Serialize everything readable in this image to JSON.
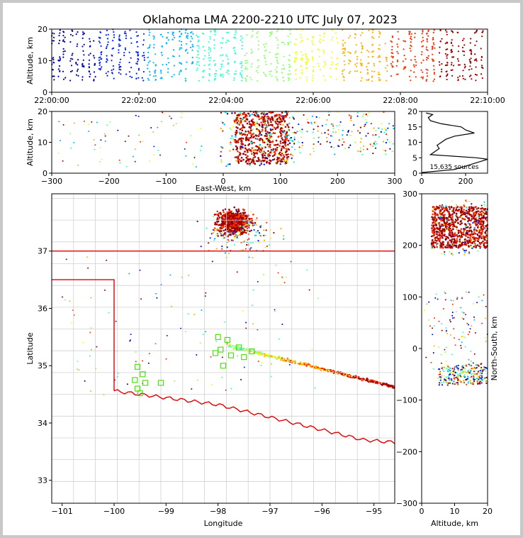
{
  "chart_data": {
    "type": "scatter",
    "title": "Oklahoma LMA 2200-2210 UTC July 07, 2023",
    "source_count_label": "15,635 sources",
    "colormap": [
      "#0000a8",
      "#0020ff",
      "#00b4ff",
      "#30ffd0",
      "#90ff70",
      "#f0ff20",
      "#ffb000",
      "#ff3000",
      "#a00000"
    ],
    "panels": {
      "time_height": {
        "xlabel": "",
        "ylabel": "Altitude, km",
        "xlim_minutes": [
          0,
          10
        ],
        "ylim": [
          0,
          20
        ],
        "x_ticks": [
          "22:00:00",
          "22:02:00",
          "22:04:00",
          "22:06:00",
          "22:08:00",
          "22:10:00"
        ],
        "y_ticks": [
          0,
          10,
          20
        ]
      },
      "ew_height": {
        "xlabel": "East-West, km",
        "ylabel": "Altitude, km",
        "xlim": [
          -300,
          300
        ],
        "ylim": [
          0,
          20
        ],
        "x_ticks": [
          -300,
          -200,
          -100,
          0,
          100,
          200,
          300
        ],
        "y_ticks": [
          0,
          10,
          20
        ]
      },
      "histogram": {
        "xlim": [
          0,
          300
        ],
        "ylim": [
          0,
          20
        ],
        "x_ticks": [
          0,
          200
        ],
        "y_ticks": [
          0,
          5,
          10,
          15,
          20
        ],
        "profile": [
          [
            0,
            0.2
          ],
          [
            150,
            1.2
          ],
          [
            300,
            4.5
          ],
          [
            250,
            5
          ],
          [
            40,
            6
          ],
          [
            60,
            7
          ],
          [
            80,
            8
          ],
          [
            70,
            9
          ],
          [
            90,
            10
          ],
          [
            110,
            11
          ],
          [
            150,
            12
          ],
          [
            240,
            13
          ],
          [
            200,
            14
          ],
          [
            180,
            15
          ],
          [
            90,
            16
          ],
          [
            40,
            17
          ],
          [
            30,
            18
          ],
          [
            50,
            19
          ],
          [
            20,
            19.5
          ]
        ]
      },
      "plan_view": {
        "xlabel": "Longitude",
        "ylabel": "Latitude",
        "xlim": [
          -101.2,
          -94.6
        ],
        "ylim": [
          32.6,
          38.0
        ],
        "x_ticks": [
          -101,
          -100,
          -99,
          -98,
          -97,
          -96,
          -95
        ],
        "y_ticks": [
          33,
          34,
          35,
          36,
          37
        ],
        "stations": [
          [
            -98.0,
            35.5
          ],
          [
            -97.82,
            35.45
          ],
          [
            -97.6,
            35.32
          ],
          [
            -97.35,
            35.25
          ],
          [
            -97.95,
            35.28
          ],
          [
            -98.05,
            35.22
          ],
          [
            -97.75,
            35.18
          ],
          [
            -97.5,
            35.15
          ],
          [
            -97.9,
            35.0
          ],
          [
            -99.55,
            34.98
          ],
          [
            -99.45,
            34.85
          ],
          [
            -99.6,
            34.75
          ],
          [
            -99.4,
            34.7
          ],
          [
            -99.1,
            34.7
          ],
          [
            -99.55,
            34.6
          ],
          [
            -99.5,
            34.52
          ]
        ]
      },
      "ns_height": {
        "xlabel": "Altitude, km",
        "ylabel": "North-South, km",
        "xlim": [
          0,
          20
        ],
        "ylim": [
          -300,
          300
        ],
        "x_ticks": [
          0,
          10,
          20
        ],
        "y_ticks": [
          -300,
          -200,
          -100,
          0,
          100,
          200,
          300
        ]
      }
    }
  }
}
